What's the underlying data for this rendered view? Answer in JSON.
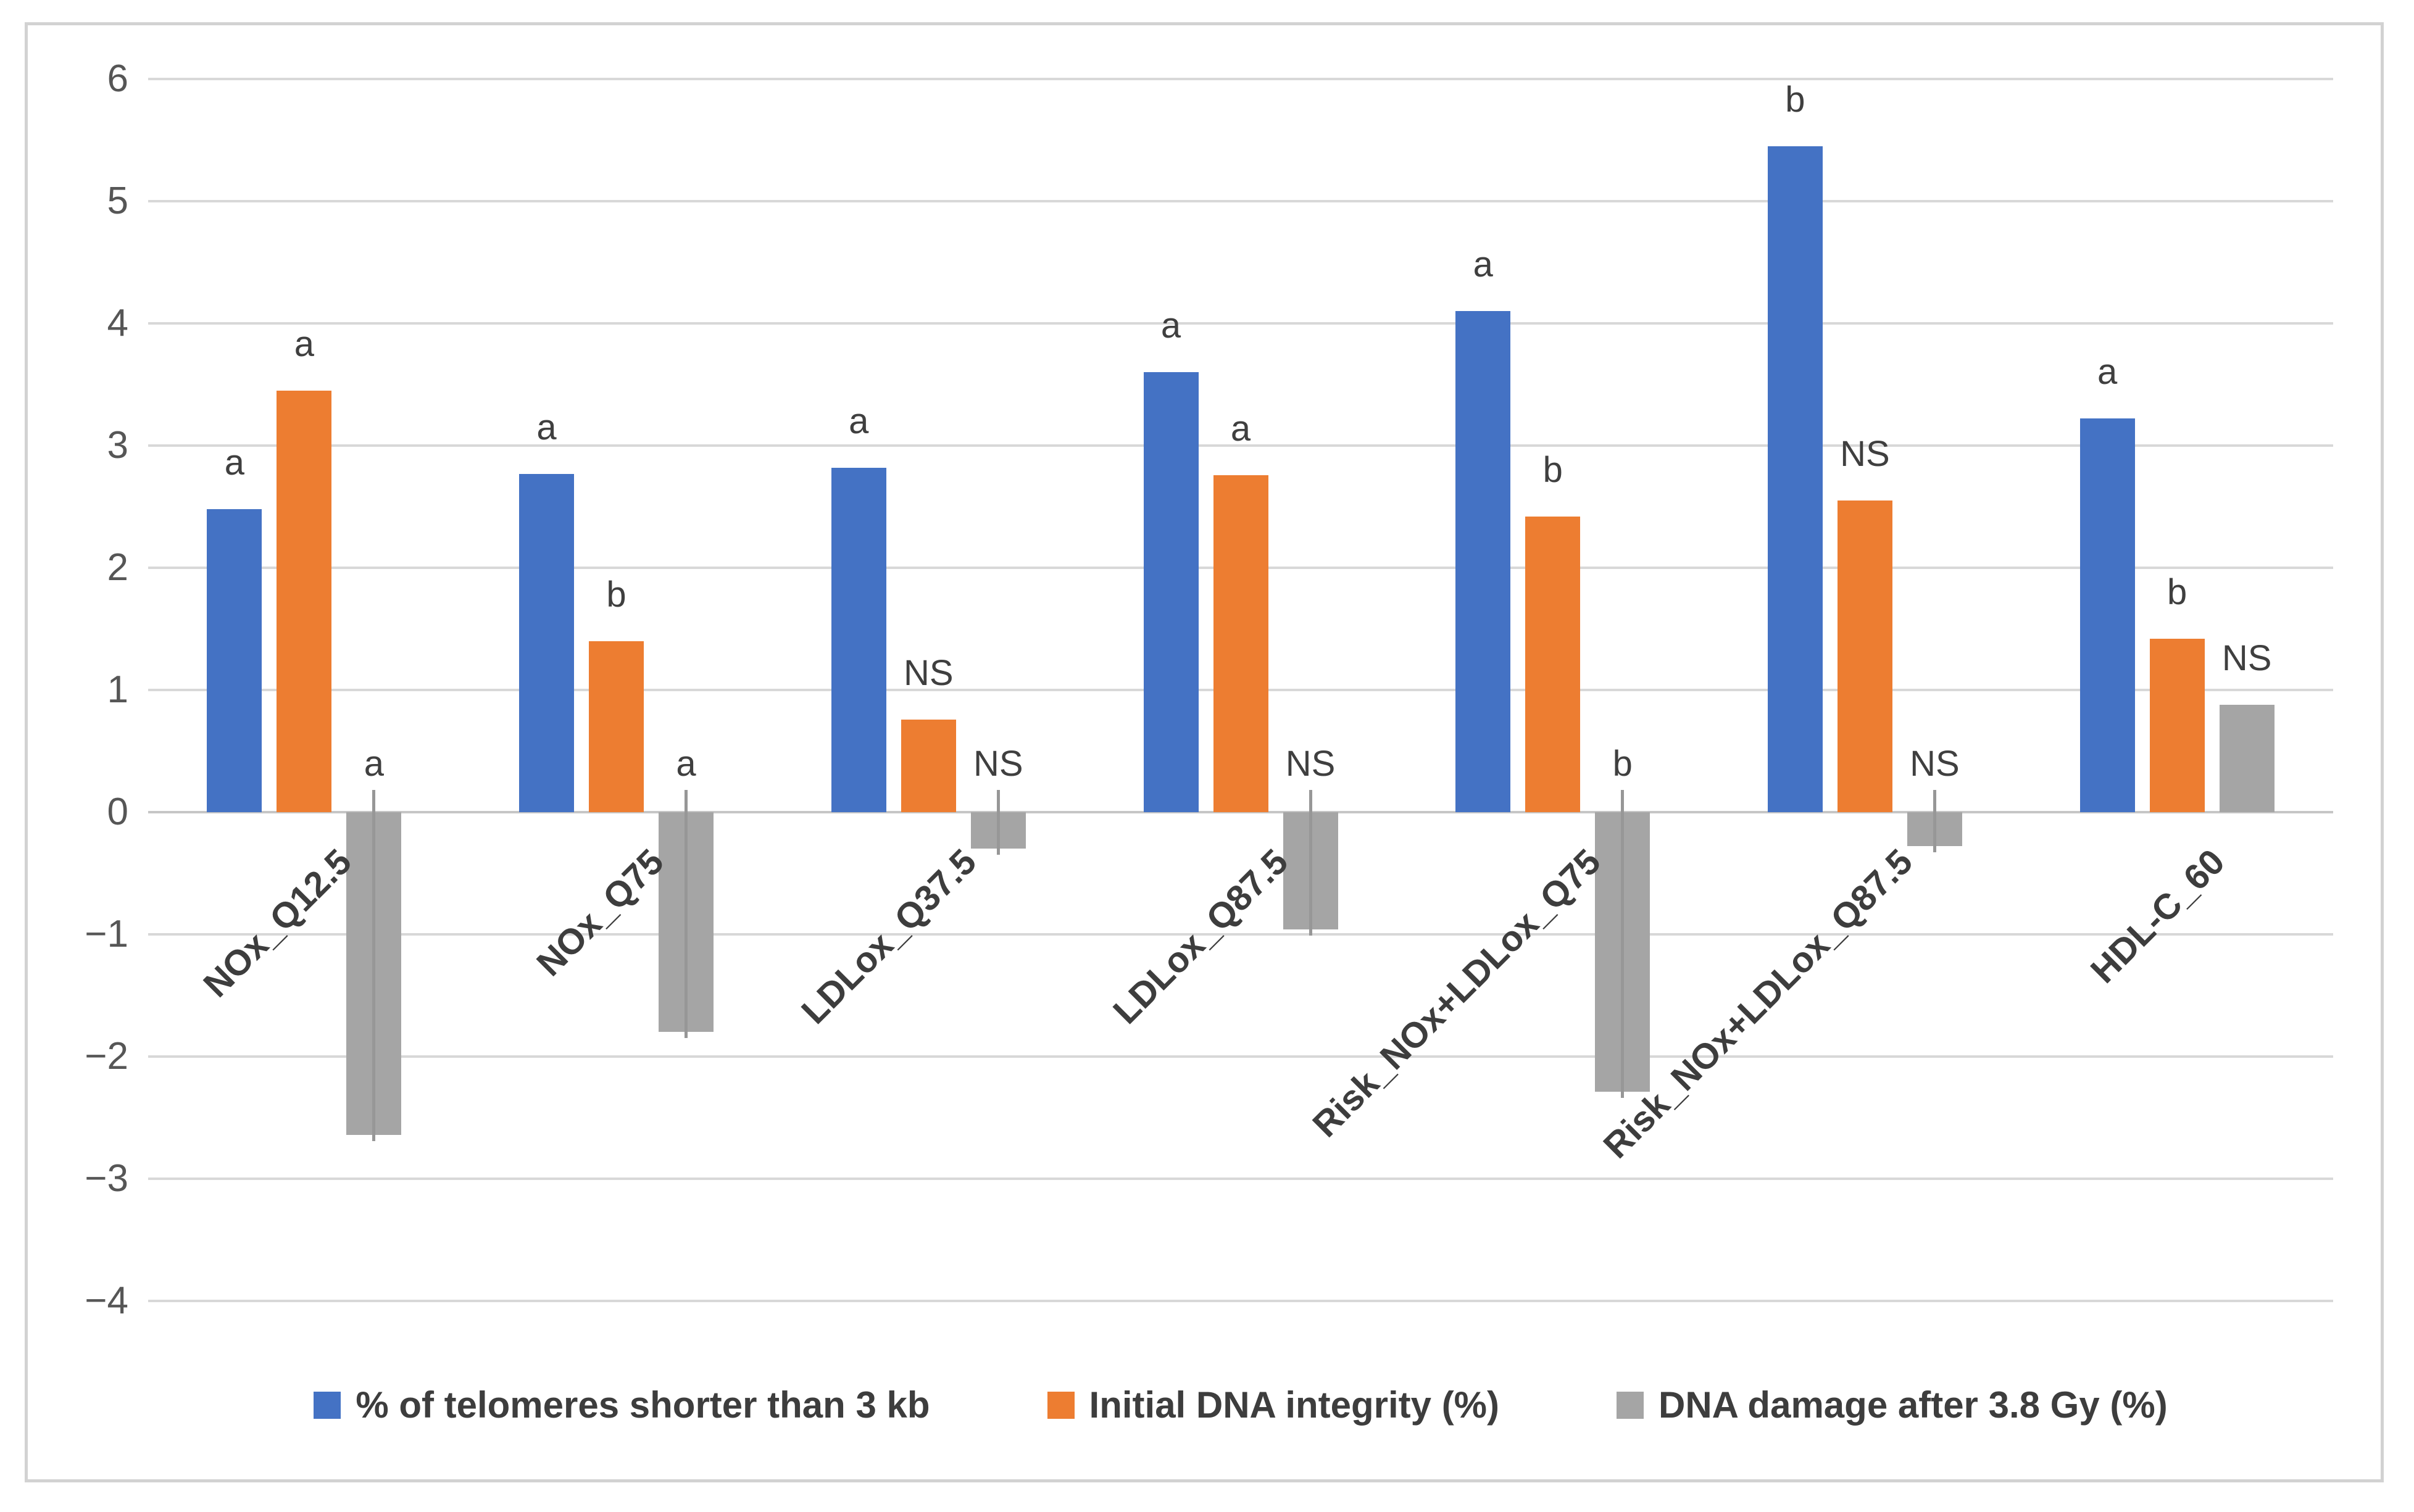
{
  "figure": {
    "background": "#FFFFFF",
    "border_color": "#D2D2D2"
  },
  "chart_data": {
    "type": "bar",
    "title": "",
    "xlabel": "",
    "ylabel": "",
    "ylim": [
      -4,
      6
    ],
    "grid": true,
    "gridline_color": "#D8D8D8",
    "axis_text_color": "#565656",
    "label_text_color": "#3F3F3F",
    "legend_position": "bottom",
    "categories": [
      "NOx_Q12.5",
      "NOx_Q75",
      "LDLox_Q37.5",
      "LDLox_Q87.5",
      "Risk_NOx+LDLox_Q75",
      "Risk_NOx+LDLox_Q87.5",
      "HDL-C_60"
    ],
    "yticks": [
      {
        "value": 6,
        "label": "6"
      },
      {
        "value": 5,
        "label": "5"
      },
      {
        "value": 4,
        "label": "4"
      },
      {
        "value": 3,
        "label": "3"
      },
      {
        "value": 2,
        "label": "2"
      },
      {
        "value": 1,
        "label": "1"
      },
      {
        "value": 0,
        "label": "0"
      },
      {
        "value": -1,
        "label": "−1"
      },
      {
        "value": -2,
        "label": "−2"
      },
      {
        "value": -3,
        "label": "−3"
      },
      {
        "value": -4,
        "label": "−4"
      }
    ],
    "series": [
      {
        "name": "% of telomeres shorter than 3 kb",
        "color": "#4472C4",
        "values": [
          2.48,
          2.77,
          2.82,
          3.6,
          4.1,
          5.45,
          3.22
        ],
        "sig_labels": [
          "a",
          "a",
          "a",
          "a",
          "a",
          "b",
          "a"
        ],
        "error_bars": false
      },
      {
        "name": "Initial DNA integrity (%)",
        "color": "#ED7D31",
        "values": [
          3.45,
          1.4,
          0.76,
          2.76,
          2.42,
          2.55,
          1.42
        ],
        "sig_labels": [
          "a",
          "b",
          "NS",
          "a",
          "b",
          "NS",
          "b"
        ],
        "error_bars": false
      },
      {
        "name": "DNA damage after 3.8 Gy (%)",
        "color": "#A5A5A5",
        "values": [
          -2.64,
          -1.8,
          -0.3,
          -0.96,
          -2.29,
          -0.28,
          0.88
        ],
        "sig_labels": [
          "a",
          "a",
          "NS",
          "NS",
          "b",
          "NS",
          "NS"
        ],
        "error_bars": true,
        "error_bar_tip": 0.18
      }
    ]
  }
}
